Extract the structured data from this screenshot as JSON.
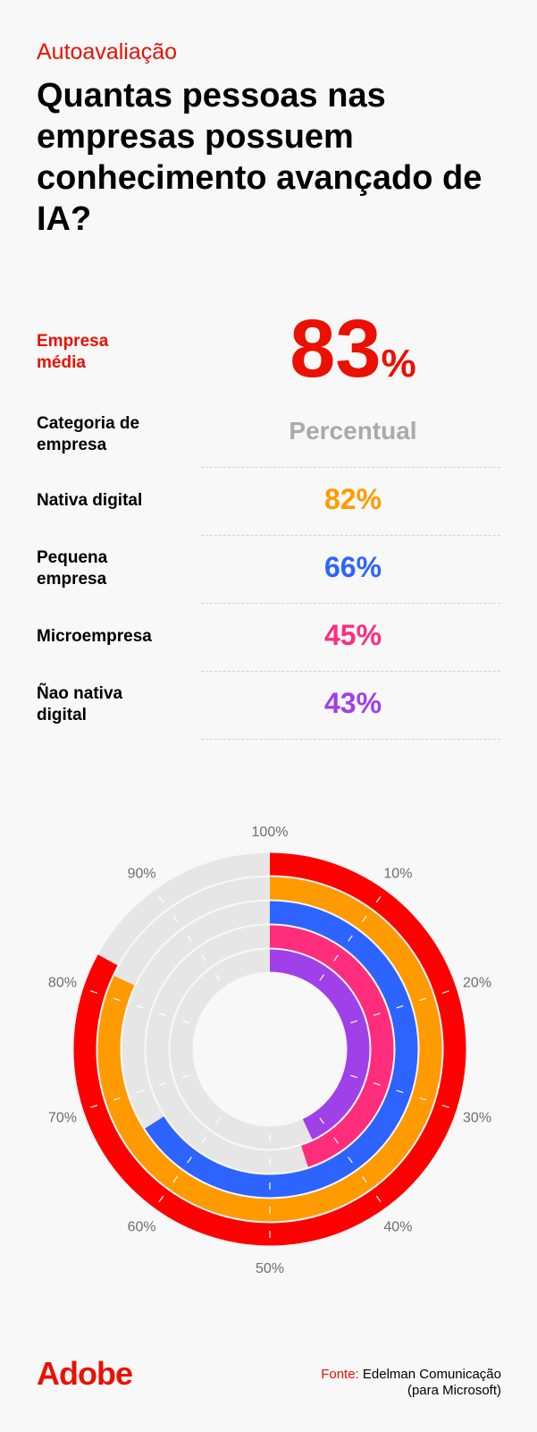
{
  "header": {
    "kicker": "Autoavaliação",
    "title": "Quantas pessoas nas empresas possuem conhecimento avançado de IA?"
  },
  "average": {
    "label": "Empresa média",
    "value": "83",
    "unit": "%",
    "color": "#eb1000"
  },
  "table": {
    "col_category": "Categoria de empresa",
    "col_percent": "Percentual",
    "rows": [
      {
        "label": "Nativa digital",
        "value": "82%",
        "color": "#ff9a00"
      },
      {
        "label": "Pequena empresa",
        "value": "66%",
        "color": "#2d64ff"
      },
      {
        "label": "Microempresa",
        "value": "45%",
        "color": "#ff2d7b"
      },
      {
        "label": "Ñao nativa digital",
        "value": "43%",
        "color": "#a040e8"
      }
    ]
  },
  "chart_data": {
    "type": "radial-bar",
    "series": [
      {
        "name": "Empresa média",
        "value": 83,
        "color": "#ff0000"
      },
      {
        "name": "Nativa digital",
        "value": 82,
        "color": "#ff9a00"
      },
      {
        "name": "Pequena empresa",
        "value": 66,
        "color": "#2d64ff"
      },
      {
        "name": "Microempresa",
        "value": 45,
        "color": "#ff2d7b"
      },
      {
        "name": "Ñao nativa digital",
        "value": 43,
        "color": "#a040e8"
      }
    ],
    "range": [
      0,
      100
    ],
    "tick_labels": [
      "10%",
      "20%",
      "30%",
      "40%",
      "50%",
      "60%",
      "70%",
      "80%",
      "90%",
      "100%"
    ],
    "track_color": "#e6e6e6"
  },
  "footer": {
    "logo": "Adobe",
    "source_key": "Fonte:",
    "source_line1": "Edelman Comunicação",
    "source_line2": "(para Microsoft)"
  }
}
